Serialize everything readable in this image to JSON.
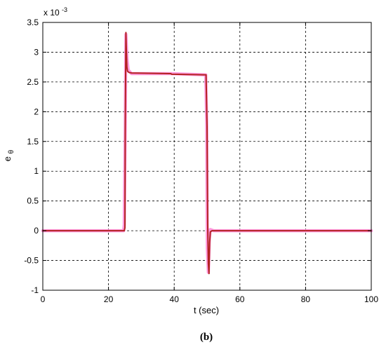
{
  "chart_data": {
    "type": "line",
    "title": "",
    "xlabel": "t (sec)",
    "ylabel": "e",
    "ylabel_subscript": "θ",
    "y_multiplier_label": "x 10",
    "y_multiplier_exponent": "-3",
    "xlim": [
      0,
      100
    ],
    "ylim": [
      -1,
      3.5
    ],
    "x_ticks": [
      0,
      20,
      40,
      60,
      80,
      100
    ],
    "x_tick_labels": [
      "0",
      "20",
      "40",
      "60",
      "80",
      "100"
    ],
    "y_ticks": [
      -1,
      -0.5,
      0,
      0.5,
      1,
      1.5,
      2,
      2.5,
      3,
      3.5
    ],
    "y_tick_labels": [
      "-1",
      "-0.5",
      "0",
      "0.5",
      "1",
      "1.5",
      "2",
      "2.5",
      "3",
      "3.5"
    ],
    "grid": true,
    "grid_style": "dashed",
    "panel_label": "(b)",
    "series": [
      {
        "color": "#ff99dd",
        "values_desc": "reference envelope",
        "x": [
          0,
          24.6,
          24.8,
          25.1,
          25.3,
          25.6,
          26,
          27,
          39,
          49.6,
          49.9,
          50.1,
          50.4,
          50.7,
          51,
          52,
          100
        ],
        "y": [
          0,
          0,
          0.1,
          1.7,
          3.3,
          2.9,
          2.7,
          2.64,
          2.64,
          2.62,
          1.8,
          -0.3,
          -0.7,
          -0.15,
          0.02,
          0,
          0
        ]
      },
      {
        "color": "#b32222",
        "values_desc": "error signal",
        "x": [
          0,
          24.8,
          25.0,
          25.1,
          25.3,
          25.4,
          25.6,
          25.8,
          26.2,
          27,
          39,
          39.2,
          49.6,
          49.7,
          50.0,
          50.2,
          50.4,
          50.6,
          50.8,
          51.0,
          51.5,
          100
        ],
        "y": [
          0,
          0,
          0.05,
          1.7,
          3.33,
          3.1,
          2.75,
          2.68,
          2.66,
          2.65,
          2.64,
          2.63,
          2.62,
          2.62,
          1.75,
          0.1,
          -0.55,
          -0.72,
          -0.2,
          -0.02,
          0,
          0
        ]
      }
    ]
  }
}
